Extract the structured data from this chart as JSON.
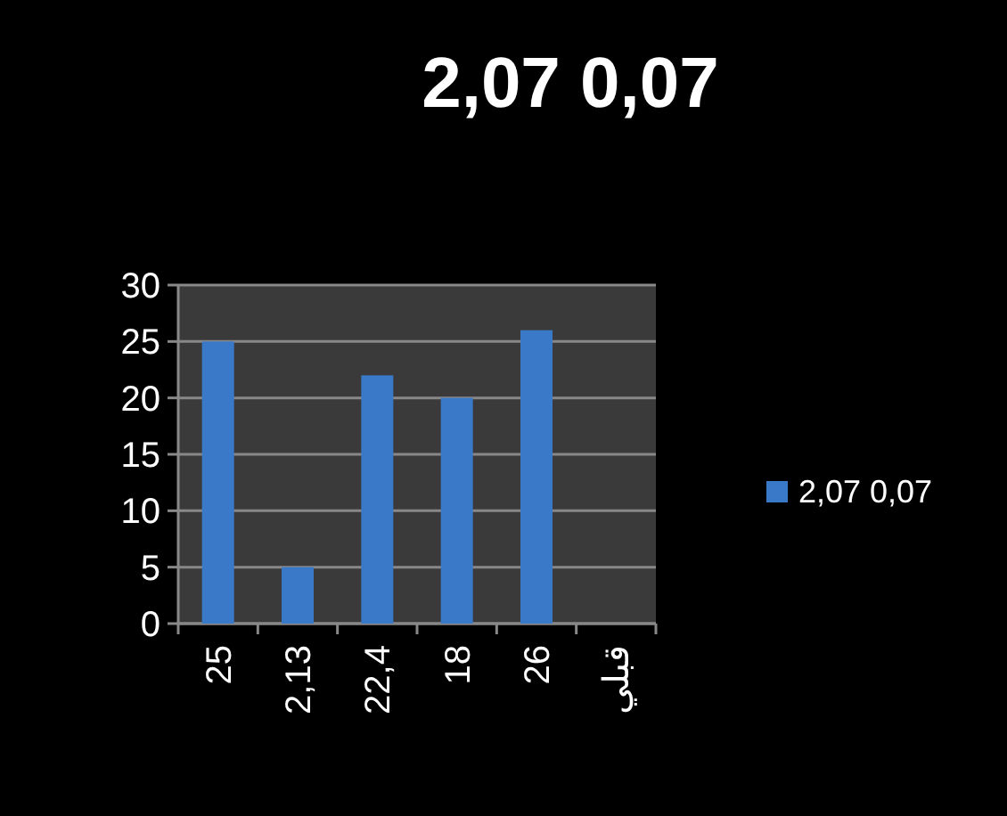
{
  "chart_data": {
    "type": "bar",
    "title": "2,07 0,07",
    "categories": [
      "25",
      "2,13",
      "22,4",
      "18",
      "26",
      "قبلي"
    ],
    "series": [
      {
        "name": "2,07 0,07",
        "color": "#3a78c8",
        "values": [
          25,
          5,
          22,
          20,
          26,
          0
        ]
      }
    ],
    "ylim": [
      0,
      30
    ],
    "yticks": [
      0,
      5,
      10,
      15,
      20,
      25,
      30
    ],
    "grid": "y",
    "legend": "right"
  }
}
